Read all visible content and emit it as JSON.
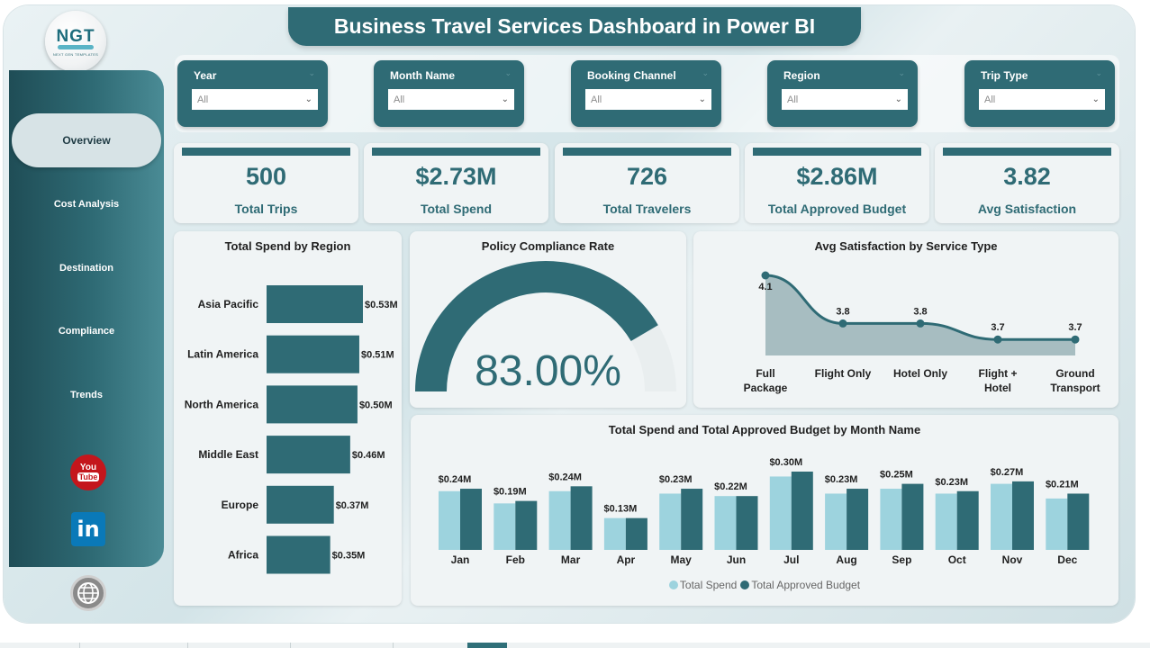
{
  "title": "Business Travel Services Dashboard in Power BI",
  "logo": {
    "text": "NGT",
    "subtitle": "NEXT GEN TEMPLATES"
  },
  "nav": {
    "items": [
      {
        "label": "Overview",
        "active": true
      },
      {
        "label": "Cost Analysis"
      },
      {
        "label": "Destination"
      },
      {
        "label": "Compliance"
      },
      {
        "label": "Trends"
      }
    ]
  },
  "social": {
    "youtube_top": "You",
    "youtube_bottom": "Tube",
    "linkedin": "in"
  },
  "filters": [
    {
      "label": "Year",
      "value": "All"
    },
    {
      "label": "Month Name",
      "value": "All"
    },
    {
      "label": "Booking Channel",
      "value": "All"
    },
    {
      "label": "Region",
      "value": "All"
    },
    {
      "label": "Trip Type",
      "value": "All"
    }
  ],
  "kpis": [
    {
      "value": "500",
      "label": "Total Trips"
    },
    {
      "value": "$2.73M",
      "label": "Total Spend"
    },
    {
      "value": "726",
      "label": "Total Travelers"
    },
    {
      "value": "$2.86M",
      "label": "Total Approved Budget"
    },
    {
      "value": "3.82",
      "label": "Avg Satisfaction"
    }
  ],
  "colors": {
    "primary": "#2f6b75",
    "light": "#9dd3de",
    "youtube": "#c4161c",
    "linkedin": "#0a79b8"
  },
  "icons": [
    "youtube-icon",
    "linkedin-icon",
    "globe-icon",
    "chevron-down-icon"
  ],
  "charts": {
    "region": {
      "title": "Total Spend by Region",
      "chart_data": {
        "type": "bar",
        "orientation": "horizontal",
        "categories": [
          "Asia Pacific",
          "Latin America",
          "North America",
          "Middle East",
          "Europe",
          "Africa"
        ],
        "values": [
          0.53,
          0.51,
          0.5,
          0.46,
          0.37,
          0.35
        ],
        "data_labels": [
          "$0.53M",
          "$0.51M",
          "$0.50M",
          "$0.46M",
          "$0.37M",
          "$0.35M"
        ],
        "unit": "$M"
      }
    },
    "compliance": {
      "title": "Policy Compliance Rate",
      "chart_data": {
        "type": "gauge",
        "value": 0.83,
        "display": "83.00%"
      }
    },
    "satisfaction": {
      "title": "Avg Satisfaction by Service Type",
      "chart_data": {
        "type": "area",
        "categories": [
          [
            "Full",
            "Package"
          ],
          [
            "Flight Only"
          ],
          [
            "Hotel Only"
          ],
          [
            "Flight +",
            "Hotel"
          ],
          [
            "Ground",
            "Transport"
          ]
        ],
        "values": [
          4.1,
          3.8,
          3.8,
          3.7,
          3.7
        ],
        "data_labels": [
          "4.1",
          "3.8",
          "3.8",
          "3.7",
          "3.7"
        ]
      }
    },
    "monthly": {
      "title": "Total Spend and Total Approved Budget by Month Name",
      "chart_data": {
        "type": "bar",
        "categories": [
          "Jan",
          "Feb",
          "Mar",
          "Apr",
          "May",
          "Jun",
          "Jul",
          "Aug",
          "Sep",
          "Oct",
          "Nov",
          "Dec"
        ],
        "series": [
          {
            "name": "Total Spend",
            "values": [
              0.24,
              0.19,
              0.24,
              0.13,
              0.23,
              0.22,
              0.3,
              0.23,
              0.25,
              0.23,
              0.27,
              0.21
            ],
            "color": "#9dd3de"
          },
          {
            "name": "Total Approved Budget",
            "values": [
              0.25,
              0.2,
              0.26,
              0.13,
              0.25,
              0.22,
              0.32,
              0.25,
              0.27,
              0.24,
              0.28,
              0.23
            ],
            "color": "#2f6b75"
          }
        ],
        "data_labels": [
          "$0.24M",
          "$0.19M",
          "$0.24M",
          "$0.13M",
          "$0.23M",
          "$0.22M",
          "$0.30M",
          "$0.23M",
          "$0.25M",
          "$0.23M",
          "$0.27M",
          "$0.21M"
        ],
        "legend_position": "bottom-center"
      }
    }
  }
}
